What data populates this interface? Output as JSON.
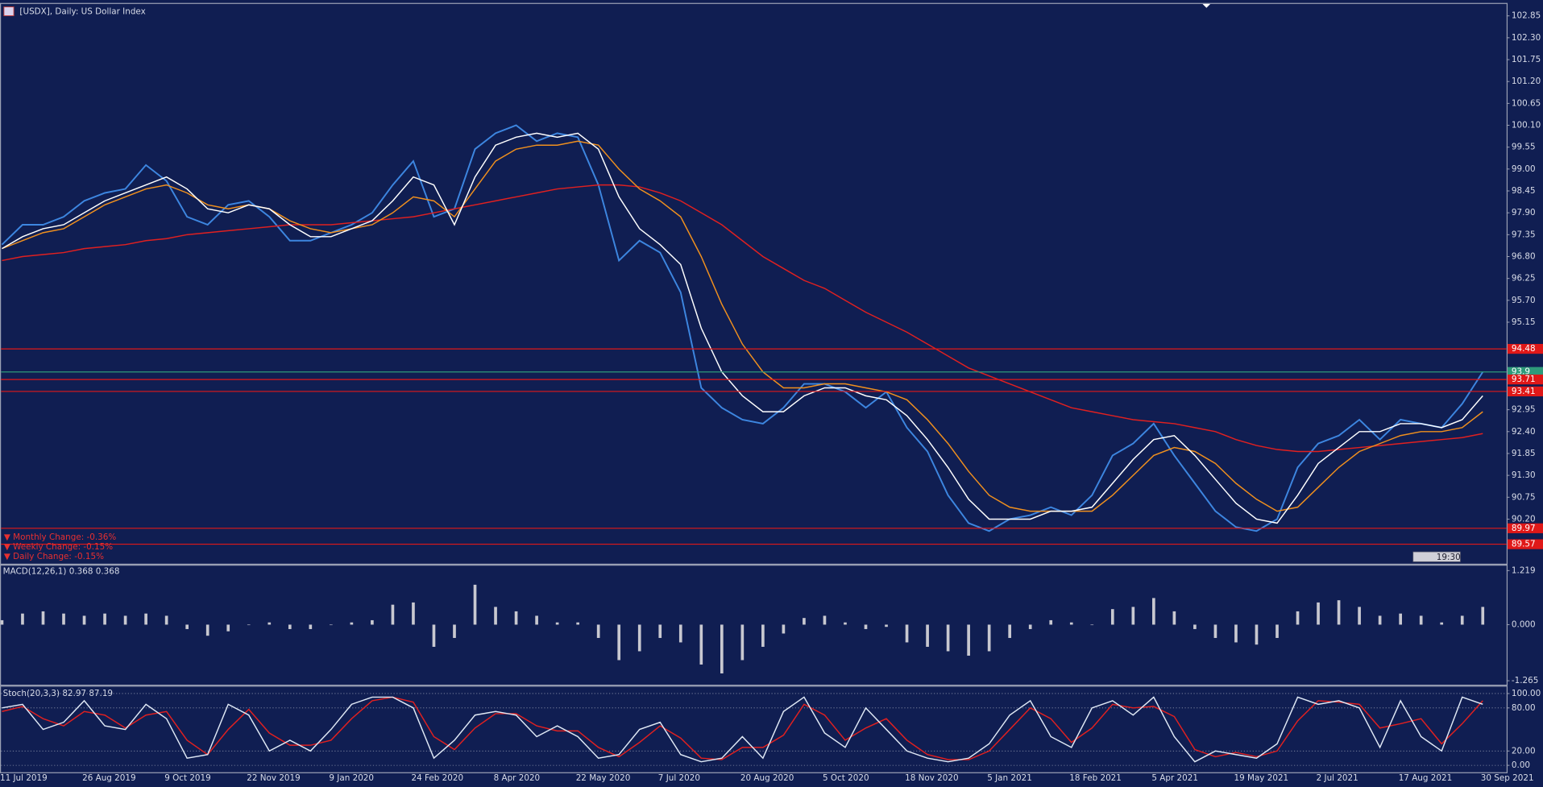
{
  "chart_data": [
    {
      "type": "line",
      "title": "[USDX], Daily:  US Dollar Index",
      "categories": [
        "11 Jul 2019",
        null,
        null,
        null,
        "26 Aug 2019",
        null,
        null,
        null,
        "9 Oct 2019",
        null,
        null,
        null,
        "22 Nov 2019",
        null,
        null,
        null,
        "9 Jan 2020",
        null,
        null,
        null,
        "24 Feb 2020",
        null,
        null,
        null,
        "8 Apr 2020",
        null,
        null,
        null,
        "22 May 2020",
        null,
        null,
        null,
        "7 Jul 2020",
        null,
        null,
        null,
        "20 Aug 2020",
        null,
        null,
        null,
        "5 Oct 2020",
        null,
        null,
        null,
        "18 Nov 2020",
        null,
        null,
        null,
        "5 Jan 2021",
        null,
        null,
        null,
        "18 Feb 2021",
        null,
        null,
        null,
        "5 Apr 2021",
        null,
        null,
        null,
        "19 May 2021",
        null,
        null,
        null,
        "2 Jul 2021",
        null,
        null,
        null,
        "17 Aug 2021",
        null,
        null,
        null,
        "30 Sep 2021"
      ],
      "series": [
        {
          "color": "#3d86e0",
          "values": [
            97.1,
            97.6,
            97.6,
            97.8,
            98.2,
            98.4,
            98.5,
            99.1,
            98.7,
            97.8,
            97.6,
            98.1,
            98.2,
            97.8,
            97.2,
            97.2,
            97.4,
            97.6,
            97.9,
            98.6,
            99.2,
            97.8,
            98.0,
            99.5,
            99.9,
            100.1,
            99.7,
            99.9,
            99.8,
            98.6,
            96.7,
            97.2,
            96.9,
            95.9,
            93.5,
            93.0,
            92.7,
            92.6,
            93.0,
            93.6,
            93.6,
            93.4,
            93.0,
            93.4,
            92.5,
            91.9,
            90.8,
            90.1,
            89.9,
            90.2,
            90.3,
            90.5,
            90.3,
            90.8,
            91.8,
            92.1,
            92.6,
            91.8,
            91.1,
            90.4,
            90.0,
            89.9,
            90.2,
            91.5,
            92.1,
            92.3,
            92.7,
            92.2,
            92.7,
            92.6,
            92.5,
            93.1,
            93.9
          ]
        },
        {
          "color": "#e02020",
          "values": [
            96.7,
            96.8,
            96.85,
            96.9,
            97.0,
            97.05,
            97.1,
            97.2,
            97.25,
            97.35,
            97.4,
            97.45,
            97.5,
            97.55,
            97.6,
            97.6,
            97.6,
            97.65,
            97.7,
            97.75,
            97.8,
            97.9,
            98.0,
            98.1,
            98.2,
            98.3,
            98.4,
            98.5,
            98.55,
            98.6,
            98.6,
            98.55,
            98.4,
            98.2,
            97.9,
            97.6,
            97.2,
            96.8,
            96.5,
            96.2,
            96.0,
            95.7,
            95.4,
            95.15,
            94.9,
            94.6,
            94.3,
            94.0,
            93.8,
            93.6,
            93.4,
            93.2,
            93.0,
            92.9,
            92.8,
            92.7,
            92.65,
            92.6,
            92.5,
            92.4,
            92.2,
            92.05,
            91.95,
            91.9,
            91.9,
            91.95,
            92.0,
            92.05,
            92.1,
            92.15,
            92.2,
            92.25,
            92.35
          ]
        },
        {
          "color": "#f0901e",
          "values": [
            97.0,
            97.2,
            97.4,
            97.5,
            97.8,
            98.1,
            98.3,
            98.5,
            98.6,
            98.4,
            98.1,
            98.0,
            98.1,
            98.0,
            97.7,
            97.5,
            97.4,
            97.5,
            97.6,
            97.9,
            98.3,
            98.2,
            97.8,
            98.5,
            99.2,
            99.5,
            99.6,
            99.6,
            99.7,
            99.6,
            99.0,
            98.5,
            98.2,
            97.8,
            96.8,
            95.6,
            94.6,
            93.9,
            93.5,
            93.5,
            93.6,
            93.6,
            93.5,
            93.4,
            93.2,
            92.7,
            92.1,
            91.4,
            90.8,
            90.5,
            90.4,
            90.4,
            90.4,
            90.4,
            90.8,
            91.3,
            91.8,
            92.0,
            91.9,
            91.6,
            91.1,
            90.7,
            90.4,
            90.5,
            91.0,
            91.5,
            91.9,
            92.1,
            92.3,
            92.4,
            92.4,
            92.5,
            92.9
          ]
        },
        {
          "color": "#ffffff",
          "values": [
            97.0,
            97.3,
            97.5,
            97.6,
            97.9,
            98.2,
            98.4,
            98.6,
            98.8,
            98.5,
            98.0,
            97.9,
            98.1,
            98.0,
            97.6,
            97.3,
            97.3,
            97.5,
            97.7,
            98.2,
            98.8,
            98.6,
            97.6,
            98.8,
            99.6,
            99.8,
            99.9,
            99.8,
            99.9,
            99.5,
            98.3,
            97.5,
            97.1,
            96.6,
            95.0,
            93.9,
            93.3,
            92.9,
            92.9,
            93.3,
            93.5,
            93.5,
            93.3,
            93.2,
            92.8,
            92.2,
            91.5,
            90.7,
            90.2,
            90.2,
            90.2,
            90.4,
            90.4,
            90.5,
            91.1,
            91.7,
            92.2,
            92.3,
            91.8,
            91.2,
            90.6,
            90.2,
            90.1,
            90.8,
            91.6,
            92.0,
            92.4,
            92.4,
            92.6,
            92.6,
            92.5,
            92.7,
            93.3
          ]
        }
      ],
      "levels": [
        {
          "value": 94.48,
          "color": "#e01818"
        },
        {
          "value": 93.9,
          "color": "#2e9a7a"
        },
        {
          "value": 93.71,
          "color": "#e01818"
        },
        {
          "value": 93.41,
          "color": "#e01818"
        },
        {
          "value": 89.97,
          "color": "#e01818"
        },
        {
          "value": 89.57,
          "color": "#e01818"
        }
      ],
      "annotations": [
        "▼ Monthly Change: -0.36%",
        "▼ Weekly Change: -0.15%",
        "▼ Daily Change: -0.15%"
      ],
      "timer": "19:30",
      "ylim": [
        89.08,
        103.15
      ],
      "yticks": [
        102.85,
        {
          "value": 102.3,
          "label": "102.30"
        },
        101.75,
        {
          "value": 101.2,
          "label": "101.20"
        },
        100.65,
        {
          "value": 100.1,
          "label": "100.10"
        },
        99.55,
        {
          "value": 99,
          "label": "99.00"
        },
        98.45,
        {
          "value": 97.9,
          "label": "97.90"
        },
        97.35,
        {
          "value": 96.8,
          "label": "96.80"
        },
        96.25,
        {
          "value": 95.7,
          "label": "95.70"
        },
        95.15,
        92.95,
        {
          "value": 92.4,
          "label": "92.40"
        },
        91.85,
        {
          "value": 91.3,
          "label": "91.30"
        },
        90.75,
        {
          "value": 90.2,
          "label": "90.20"
        }
      ]
    },
    {
      "type": "bar",
      "title": "MACD(12,26,1) 0.368 0.368",
      "color": "#c8c8d0",
      "values": [
        0.1,
        0.25,
        0.3,
        0.25,
        0.2,
        0.25,
        0.2,
        0.25,
        0.2,
        -0.1,
        -0.25,
        -0.15,
        0.0,
        0.05,
        -0.1,
        -0.1,
        0.0,
        0.05,
        0.1,
        0.45,
        0.5,
        -0.5,
        -0.3,
        0.9,
        0.4,
        0.3,
        0.2,
        0.05,
        0.05,
        -0.3,
        -0.8,
        -0.6,
        -0.3,
        -0.4,
        -0.9,
        -1.1,
        -0.8,
        -0.5,
        -0.2,
        0.15,
        0.2,
        0.05,
        -0.1,
        -0.05,
        -0.4,
        -0.5,
        -0.6,
        -0.7,
        -0.6,
        -0.3,
        -0.1,
        0.1,
        0.05,
        0.0,
        0.35,
        0.4,
        0.6,
        0.3,
        -0.1,
        -0.3,
        -0.4,
        -0.45,
        -0.3,
        0.3,
        0.5,
        0.55,
        0.4,
        0.2,
        0.25,
        0.2,
        0.05,
        0.2,
        0.4
      ],
      "ylim": [
        -1.354,
        1.33
      ],
      "yticks": [
        1.219,
        {
          "value": 0,
          "label": "0.000"
        },
        -1.265
      ]
    },
    {
      "type": "line",
      "title": "Stoch(20,3,3) 82.97 87.19",
      "grid": true,
      "series": [
        {
          "color": "#e02020",
          "values": [
            75,
            82,
            65,
            55,
            75,
            70,
            52,
            70,
            75,
            35,
            15,
            50,
            78,
            45,
            28,
            28,
            35,
            65,
            90,
            95,
            88,
            40,
            22,
            52,
            72,
            72,
            55,
            48,
            48,
            25,
            12,
            32,
            55,
            38,
            10,
            8,
            25,
            25,
            42,
            85,
            70,
            35,
            52,
            65,
            35,
            15,
            8,
            8,
            20,
            50,
            80,
            65,
            32,
            52,
            85,
            80,
            82,
            68,
            22,
            12,
            18,
            12,
            20,
            62,
            90,
            88,
            85,
            52,
            58,
            65,
            30,
            58,
            90
          ]
        },
        {
          "color": "#dfe8f5",
          "values": [
            80,
            85,
            50,
            60,
            90,
            55,
            50,
            85,
            65,
            10,
            15,
            85,
            70,
            20,
            35,
            20,
            50,
            85,
            95,
            95,
            80,
            10,
            35,
            70,
            75,
            70,
            40,
            55,
            40,
            10,
            15,
            50,
            60,
            15,
            5,
            10,
            40,
            10,
            75,
            95,
            45,
            25,
            80,
            50,
            20,
            10,
            5,
            10,
            30,
            70,
            90,
            40,
            25,
            80,
            90,
            70,
            95,
            40,
            5,
            20,
            15,
            10,
            30,
            95,
            85,
            90,
            80,
            25,
            90,
            40,
            20,
            95,
            85
          ]
        }
      ],
      "ylim": [
        -9.6,
        109.6
      ],
      "yticks": [
        {
          "value": 100,
          "label": "100.00"
        },
        {
          "value": 80,
          "label": "80.00"
        },
        {
          "value": 20,
          "label": "20.00"
        },
        {
          "value": 0,
          "label": "0.00"
        }
      ]
    }
  ]
}
